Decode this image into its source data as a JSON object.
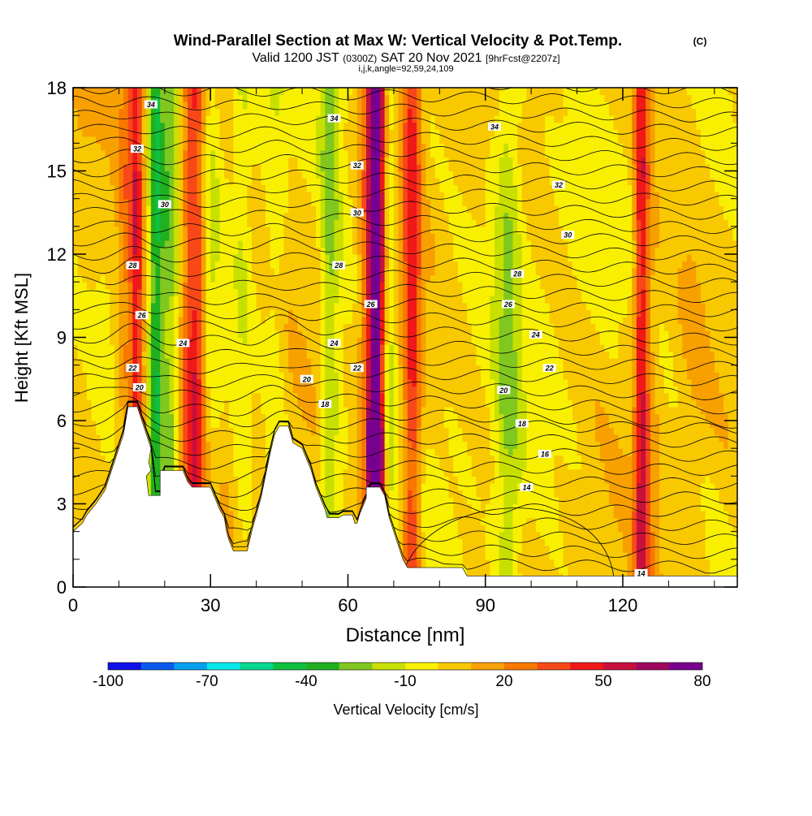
{
  "chart_data": {
    "type": "heatmap",
    "title": "Wind-Parallel Section at Max W: Vertical Velocity & Pot.Temp.",
    "title_badge": "(C)",
    "subtitle": {
      "valid_prefix": "Valid 1200 JST",
      "utc": "(0300Z)",
      "date": "SAT 20 Nov 2021",
      "forecast": "[9hrFcst@2207z]"
    },
    "indices_line": "i,j,k,angle=92,59,24,109",
    "xlabel": "Distance [nm]",
    "ylabel": "Height [Kft MSL]",
    "xlim": [
      0,
      145
    ],
    "ylim": [
      0,
      18
    ],
    "x_ticks": [
      0,
      30,
      60,
      90,
      120
    ],
    "y_ticks": [
      0,
      3,
      6,
      9,
      12,
      15,
      18
    ],
    "colorbar": {
      "label": "Vertical Velocity [cm/s]",
      "tick_labels": [
        "-100",
        "-70",
        "-40",
        "-10",
        "20",
        "50",
        "80"
      ],
      "colors": [
        "#1010e8",
        "#0a5af0",
        "#00a0f0",
        "#00e8e8",
        "#00d890",
        "#10c040",
        "#20b020",
        "#80c820",
        "#c8e000",
        "#f8f000",
        "#f8c800",
        "#f8a000",
        "#f87800",
        "#f84818",
        "#f01818",
        "#c8103c",
        "#a00860",
        "#780090"
      ]
    },
    "terrain_kft": [
      [
        0,
        2
      ],
      [
        2,
        2.3
      ],
      [
        3,
        2.6
      ],
      [
        5,
        3
      ],
      [
        7,
        3.5
      ],
      [
        9,
        4.5
      ],
      [
        11,
        5.5
      ],
      [
        12,
        6.5
      ],
      [
        14,
        6.5
      ],
      [
        15,
        6
      ],
      [
        16,
        5.5
      ],
      [
        17,
        5
      ],
      [
        16.5,
        4.5
      ],
      [
        17,
        4.2
      ],
      [
        16,
        4
      ],
      [
        16.5,
        3.3
      ],
      [
        19,
        3.3
      ],
      [
        19,
        4.2
      ],
      [
        24,
        4.2
      ],
      [
        25,
        3.8
      ],
      [
        26,
        3.6
      ],
      [
        30,
        3.6
      ],
      [
        31,
        3.2
      ],
      [
        32,
        2.8
      ],
      [
        33,
        2.5
      ],
      [
        33.5,
        2
      ],
      [
        34,
        1.7
      ],
      [
        35,
        1.3
      ],
      [
        38,
        1.3
      ],
      [
        39,
        2
      ],
      [
        40,
        2.6
      ],
      [
        41,
        3.2
      ],
      [
        42,
        4
      ],
      [
        43,
        4.8
      ],
      [
        44,
        5.5
      ],
      [
        45,
        5.8
      ],
      [
        47,
        5.8
      ],
      [
        48,
        5.2
      ],
      [
        50,
        5
      ],
      [
        51,
        4.6
      ],
      [
        52,
        4.2
      ],
      [
        53,
        3.6
      ],
      [
        54,
        3.2
      ],
      [
        55,
        2.8
      ],
      [
        55.5,
        2.5
      ],
      [
        58,
        2.5
      ],
      [
        59,
        2.6
      ],
      [
        61,
        2.6
      ],
      [
        61.5,
        2.3
      ],
      [
        62,
        2.3
      ],
      [
        62.5,
        2.6
      ],
      [
        64,
        3.2
      ],
      [
        64,
        3.6
      ],
      [
        67,
        3.6
      ],
      [
        68,
        3.3
      ],
      [
        69,
        2.5
      ],
      [
        70,
        2
      ],
      [
        71,
        1.5
      ],
      [
        72,
        1
      ],
      [
        73,
        0.7
      ],
      [
        85,
        0.7
      ],
      [
        86,
        0.4
      ],
      [
        145,
        0.4
      ]
    ],
    "w_field": [
      {
        "x": 2,
        "xw": 3,
        "w": 5
      },
      {
        "x": 13,
        "xw": 3,
        "w": 35
      },
      {
        "x": 14,
        "xw": 1.5,
        "w": 55
      },
      {
        "x": 14,
        "xw": 2,
        "w": -40
      },
      {
        "x": 18,
        "xw": 1.5,
        "w": -40
      },
      {
        "x": 21,
        "xw": 2,
        "w": -25
      },
      {
        "x": 25,
        "xw": 2,
        "w": 20
      },
      {
        "x": 27,
        "xw": 2,
        "w": 35
      },
      {
        "x": 30,
        "xw": 2,
        "w": -10
      },
      {
        "x": 37,
        "xw": 2,
        "w": -10
      },
      {
        "x": 44,
        "xw": 2,
        "w": -10
      },
      {
        "x": 56,
        "xw": 2,
        "w": -25
      },
      {
        "x": 60,
        "xw": 3,
        "w": -5
      },
      {
        "x": 66,
        "xw": 3,
        "w": 45
      },
      {
        "x": 66,
        "xw": 1.2,
        "w": 80
      },
      {
        "x": 69,
        "xw": 1.5,
        "w": -25
      },
      {
        "x": 74,
        "xw": 2,
        "w": 40
      },
      {
        "x": 95,
        "xw": 3,
        "w": -20
      },
      {
        "x": 124,
        "xw": 1.5,
        "w": 45
      },
      {
        "x": 126,
        "xw": 2,
        "w": 10
      },
      {
        "x": 135,
        "xw": 3,
        "w": 5
      }
    ],
    "theta_label_positions": [
      {
        "v": "34",
        "x": 17,
        "y": 17.4
      },
      {
        "v": "34",
        "x": 57,
        "y": 16.9
      },
      {
        "v": "34",
        "x": 92,
        "y": 16.6
      },
      {
        "v": "32",
        "x": 14,
        "y": 15.8
      },
      {
        "v": "32",
        "x": 62,
        "y": 15.2
      },
      {
        "v": "32",
        "x": 106,
        "y": 14.5
      },
      {
        "v": "30",
        "x": 20,
        "y": 13.8
      },
      {
        "v": "30",
        "x": 62,
        "y": 13.5
      },
      {
        "v": "30",
        "x": 108,
        "y": 12.7
      },
      {
        "v": "28",
        "x": 13,
        "y": 11.6
      },
      {
        "v": "28",
        "x": 58,
        "y": 11.6
      },
      {
        "v": "28",
        "x": 97,
        "y": 11.3
      },
      {
        "v": "26",
        "x": 15,
        "y": 9.8
      },
      {
        "v": "26",
        "x": 65,
        "y": 10.2
      },
      {
        "v": "26",
        "x": 95,
        "y": 10.2
      },
      {
        "v": "24",
        "x": 24,
        "y": 8.8
      },
      {
        "v": "24",
        "x": 57,
        "y": 8.8
      },
      {
        "v": "24",
        "x": 101,
        "y": 9.1
      },
      {
        "v": "22",
        "x": 13,
        "y": 7.9
      },
      {
        "v": "22",
        "x": 62,
        "y": 7.9
      },
      {
        "v": "22",
        "x": 104,
        "y": 7.9
      },
      {
        "v": "20",
        "x": 14.5,
        "y": 7.2
      },
      {
        "v": "20",
        "x": 51,
        "y": 7.5
      },
      {
        "v": "20",
        "x": 94,
        "y": 7.1
      },
      {
        "v": "18",
        "x": 55,
        "y": 6.6
      },
      {
        "v": "18",
        "x": 98,
        "y": 5.9
      },
      {
        "v": "16",
        "x": 103,
        "y": 4.8
      },
      {
        "v": "14",
        "x": 99,
        "y": 3.6
      },
      {
        "v": "14",
        "x": 124,
        "y": 0.5
      }
    ]
  }
}
